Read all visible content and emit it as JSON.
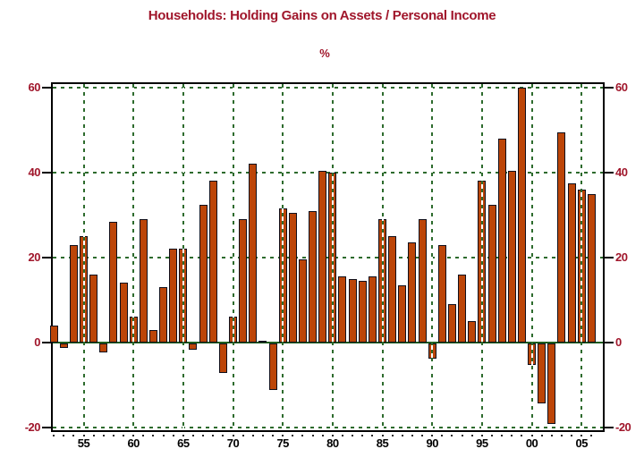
{
  "title": "Households: Holding Gains on Assets / Personal Income",
  "subtitle": "%",
  "colors": {
    "title_red": "#A0162B",
    "axis_label_red": "#A0162B",
    "bar_fill": "#BC4508",
    "bar_border": "#10101C",
    "grid_green": "#2D6B2D",
    "zero_line_green": "#1F5F1F",
    "frame_black": "#000000",
    "x_label_black": "#000000"
  },
  "chart_data": {
    "type": "bar",
    "title": "Households: Holding Gains on Assets / Personal Income",
    "xlabel": "",
    "ylabel": "%",
    "ylim": [
      -20,
      60
    ],
    "yticks": [
      60,
      40,
      20,
      0,
      -20
    ],
    "xticks": [
      {
        "label": "55",
        "year": 1955
      },
      {
        "label": "60",
        "year": 1960
      },
      {
        "label": "65",
        "year": 1965
      },
      {
        "label": "70",
        "year": 1970
      },
      {
        "label": "75",
        "year": 1975
      },
      {
        "label": "80",
        "year": 1980
      },
      {
        "label": "85",
        "year": 1985
      },
      {
        "label": "90",
        "year": 1990
      },
      {
        "label": "95",
        "year": 1995
      },
      {
        "label": "00",
        "year": 2000
      },
      {
        "label": "05",
        "year": 2005
      }
    ],
    "grid": "dashed green vertical and horizontal gridlines at labeled ticks; solid green zero line",
    "legend": "none",
    "years": [
      1952,
      1953,
      1954,
      1955,
      1956,
      1957,
      1958,
      1959,
      1960,
      1961,
      1962,
      1963,
      1964,
      1965,
      1966,
      1967,
      1968,
      1969,
      1970,
      1971,
      1972,
      1973,
      1974,
      1975,
      1976,
      1977,
      1978,
      1979,
      1980,
      1981,
      1982,
      1983,
      1984,
      1985,
      1986,
      1987,
      1988,
      1989,
      1990,
      1991,
      1992,
      1993,
      1994,
      1995,
      1996,
      1997,
      1998,
      1999,
      2000,
      2001,
      2002,
      2003,
      2004,
      2005,
      2006
    ],
    "values": [
      4,
      -1,
      23,
      25,
      16,
      -2,
      28.5,
      14,
      6,
      29,
      3,
      13,
      22,
      22,
      -1.5,
      32.5,
      38,
      -7,
      6,
      29,
      42,
      0.5,
      -11,
      31.5,
      30.5,
      19.5,
      31,
      40.5,
      40,
      15.5,
      15,
      14.5,
      15.5,
      29,
      25,
      13.5,
      23.5,
      29,
      -3.5,
      23,
      9,
      16,
      5,
      38,
      32.5,
      48,
      40.5,
      60,
      -5,
      -14,
      -19,
      49.5,
      37.5,
      36,
      35
    ]
  }
}
